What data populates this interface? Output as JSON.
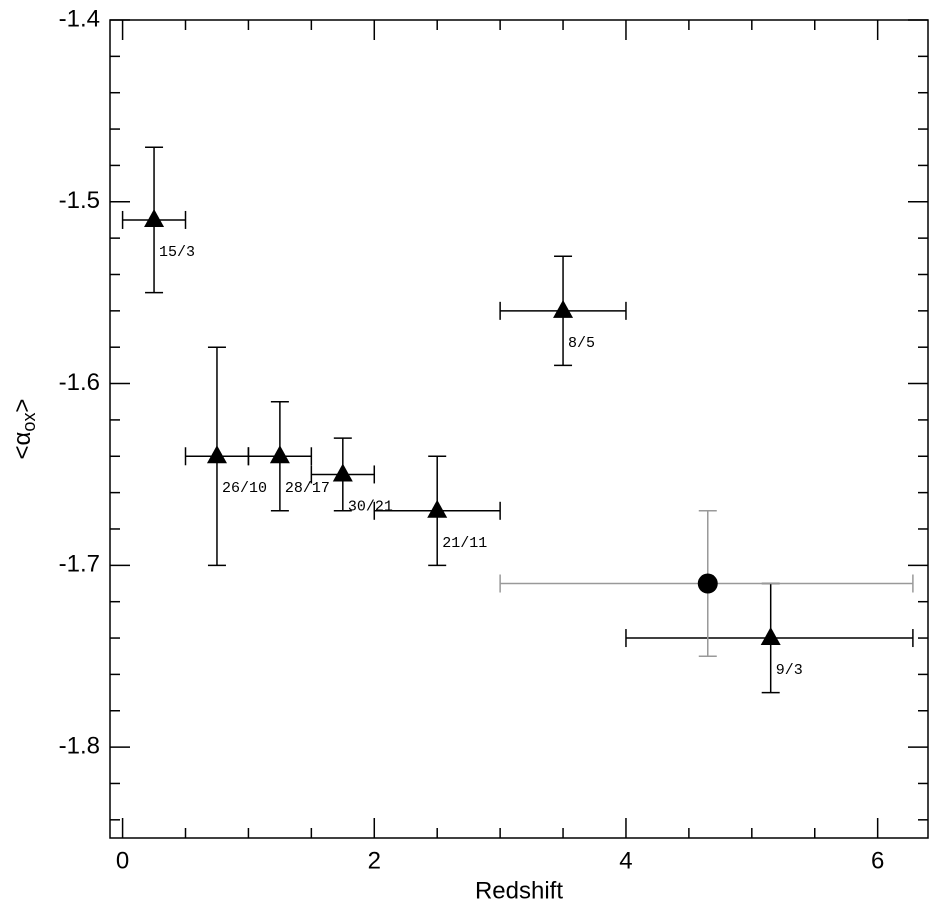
{
  "chart_data": {
    "type": "scatter",
    "xlabel": "Redshift",
    "ylabel": [
      "<α",
      "ox",
      ">"
    ],
    "xlim": [
      -0.1,
      6.4
    ],
    "ylim": [
      -1.85,
      -1.4
    ],
    "xticks": [
      0,
      2,
      4,
      6
    ],
    "xminorticks": [
      0.5,
      1,
      1.5,
      2.5,
      3,
      3.5,
      4.5,
      5,
      5.5
    ],
    "yticks": [
      -1.8,
      -1.7,
      -1.6,
      -1.5,
      -1.4
    ],
    "yminorticks": [
      -1.84,
      -1.82,
      -1.78,
      -1.76,
      -1.74,
      -1.72,
      -1.68,
      -1.66,
      -1.64,
      -1.62,
      -1.58,
      -1.56,
      -1.54,
      -1.52,
      -1.48,
      -1.46,
      -1.44,
      -1.42
    ],
    "series": [
      {
        "marker": "triangle",
        "color": "#000000",
        "errcolor": "#000000",
        "x": [
          0.25,
          0.75,
          1.25,
          1.75,
          2.5,
          3.5,
          5.15
        ],
        "values": [
          -1.51,
          -1.64,
          -1.64,
          -1.65,
          -1.67,
          -1.56,
          -1.74
        ],
        "yerr": [
          0.04,
          0.06,
          0.03,
          0.02,
          0.03,
          0.03,
          0.03
        ],
        "x_min": [
          0,
          0.5,
          1,
          1.5,
          2,
          3,
          4
        ],
        "x_max": [
          0.5,
          1,
          1.5,
          2,
          3,
          4,
          6.28
        ],
        "point_labels": [
          "15/3",
          "26/10",
          "28/17",
          "30/21",
          "21/11",
          "8/5",
          "9/3"
        ]
      },
      {
        "marker": "circle",
        "color": "#000000",
        "errcolor": "#999999",
        "x": [
          4.65
        ],
        "values": [
          -1.71
        ],
        "yerr": [
          0.04
        ],
        "x_min": [
          3
        ],
        "x_max": [
          6.28
        ]
      }
    ]
  }
}
